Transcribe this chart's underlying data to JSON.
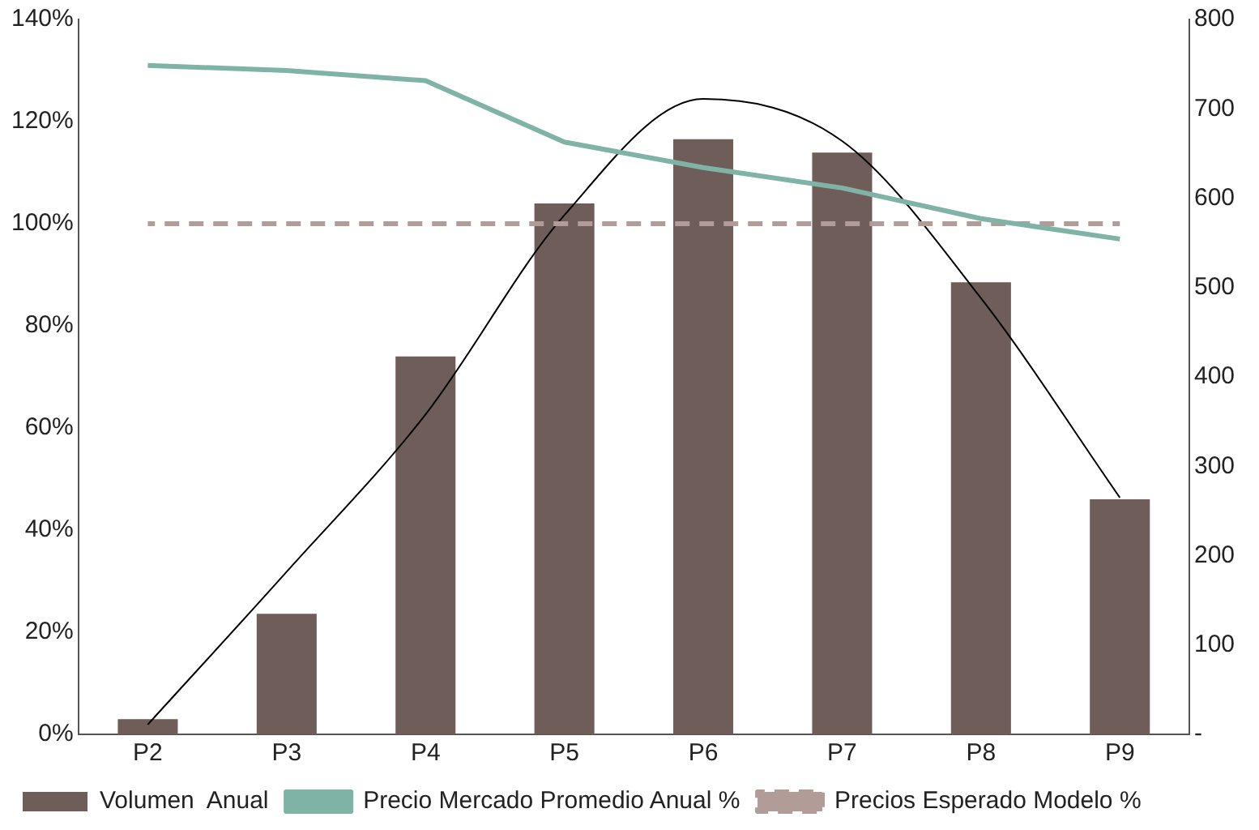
{
  "chart_data": {
    "type": "bar",
    "categories": [
      "P2",
      "P3",
      "P4",
      "P5",
      "P6",
      "P7",
      "P8",
      "P9"
    ],
    "series": [
      {
        "name": "Volumen  Anual",
        "type": "bar",
        "axis": "y2",
        "color": "#6e5d58",
        "values": [
          17,
          135,
          423,
          594,
          666,
          651,
          506,
          263
        ]
      },
      {
        "name": "Precio Mercado Promedio Anual %",
        "type": "line",
        "axis": "y",
        "color": "#7fb3a6",
        "line_style": "solid",
        "values": [
          131,
          130,
          128,
          116,
          111,
          107,
          101,
          97
        ]
      },
      {
        "name": "Precios Esperado Modelo %",
        "type": "line",
        "axis": "y",
        "color": "#b19c98",
        "line_style": "dashed",
        "values": [
          100,
          100,
          100,
          100,
          100,
          100,
          100,
          100
        ]
      },
      {
        "type": "line",
        "axis": "y2",
        "color": "#000000",
        "line_style": "solid",
        "values": [
          11,
          182,
          358,
          581,
          711,
          664,
          488,
          265
        ]
      }
    ],
    "ylim": [
      0,
      140
    ],
    "yticks": [
      {
        "value": 0,
        "label": "0%"
      },
      {
        "value": 20,
        "label": "20%"
      },
      {
        "value": 40,
        "label": "40%"
      },
      {
        "value": 60,
        "label": "60%"
      },
      {
        "value": 80,
        "label": "80%"
      },
      {
        "value": 100,
        "label": "100%"
      },
      {
        "value": 120,
        "label": "120%"
      },
      {
        "value": 140,
        "label": "140%"
      }
    ],
    "y2lim": [
      0,
      800
    ],
    "y2ticks": [
      {
        "value": 0,
        "label": "-"
      },
      100,
      200,
      300,
      400,
      500,
      600,
      700,
      800
    ],
    "legend": "bottom",
    "grid": false,
    "marker": "none"
  }
}
